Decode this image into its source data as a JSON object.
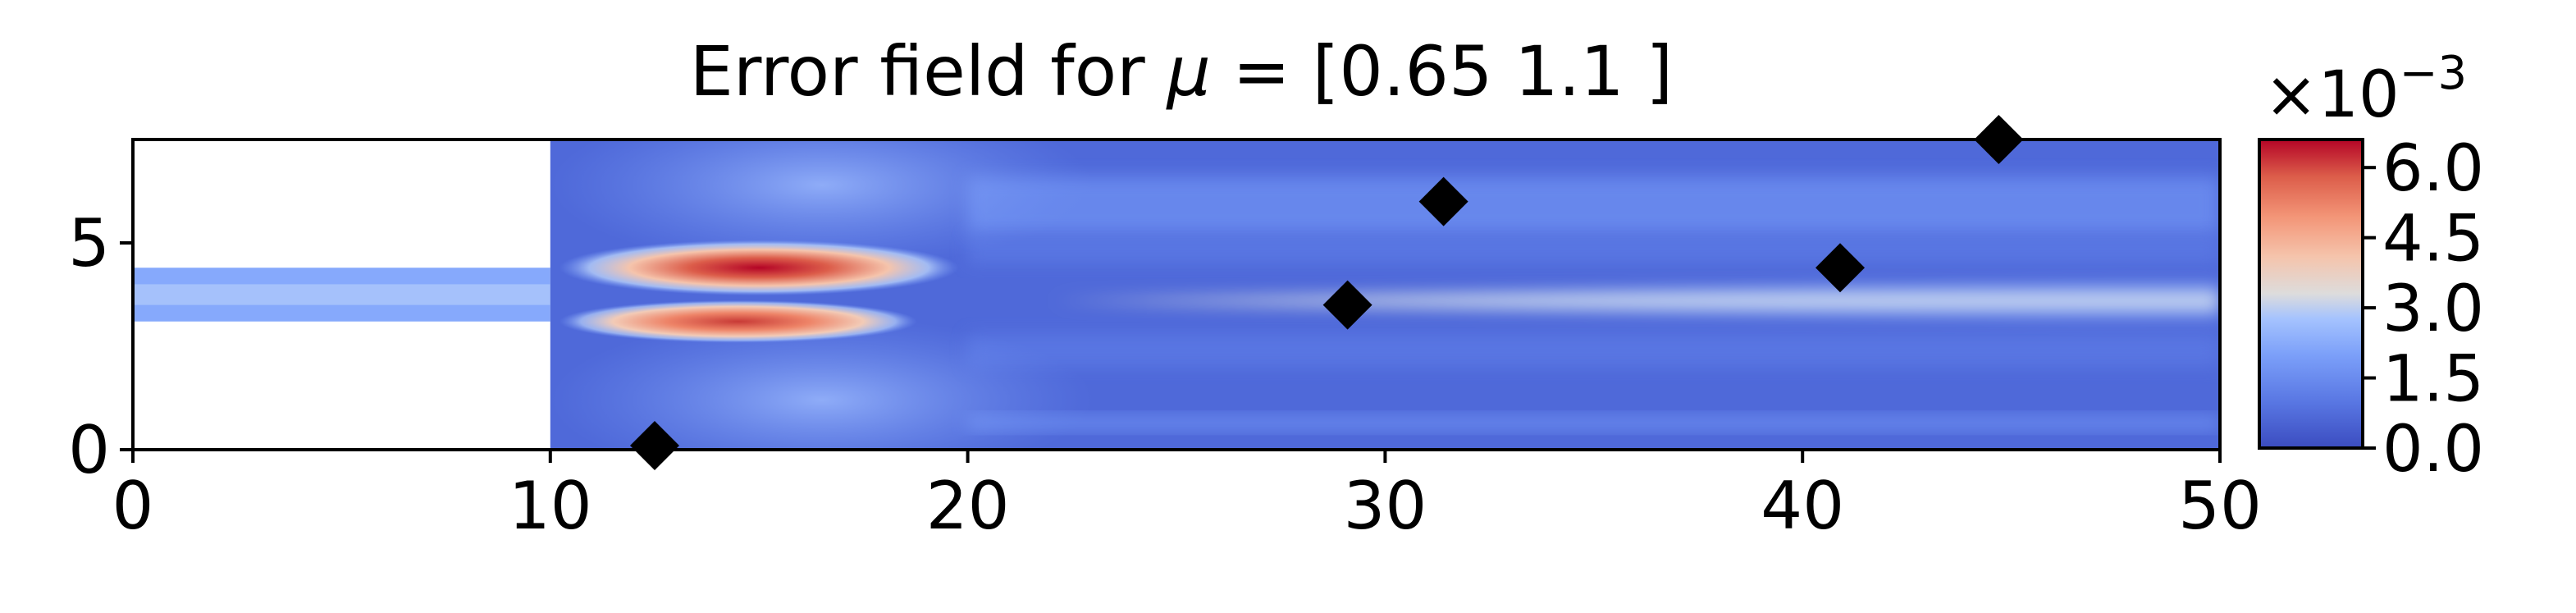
{
  "chart_data": {
    "type": "heatmap",
    "title_prefix": "Error field for ",
    "title_mu": "μ",
    "title_suffix": " = [0.65 1.1 ]",
    "xlabel": "",
    "ylabel": "",
    "xlim": [
      0,
      50
    ],
    "ylim": [
      0,
      7.5
    ],
    "x_ticks": [
      0,
      10,
      20,
      30,
      40,
      50
    ],
    "y_ticks": [
      0,
      5
    ],
    "grid": false,
    "domain": {
      "inlet_channel": {
        "x": [
          0,
          10
        ],
        "y": [
          3.1,
          4.4
        ]
      },
      "main_chamber": {
        "x": [
          10,
          50
        ],
        "y": [
          0,
          7.5
        ]
      }
    },
    "error_features": [
      {
        "name": "upper-jet-peak",
        "x_range": [
          11,
          19
        ],
        "y": 4.4,
        "value": 0.0066
      },
      {
        "name": "lower-jet-peak",
        "x_range": [
          11,
          18
        ],
        "y": 3.1,
        "value": 0.0052
      },
      {
        "name": "central-streak",
        "x_range": [
          22,
          50
        ],
        "y": 3.6,
        "value": 0.003
      }
    ],
    "sensor_points": [
      {
        "x": 12.5,
        "y": 0.1
      },
      {
        "x": 29.1,
        "y": 3.5
      },
      {
        "x": 31.4,
        "y": 6.0
      },
      {
        "x": 40.9,
        "y": 4.4
      },
      {
        "x": 44.7,
        "y": 7.5
      }
    ],
    "colorbar": {
      "colormap": "coolwarm",
      "min": 0.0,
      "max": 6.6,
      "ticks": [
        "0.0",
        "1.5",
        "3.0",
        "4.5",
        "6.0"
      ],
      "exponent_base": "×10",
      "exponent_power": "−3"
    },
    "colors": {
      "low": "#3b4cc0",
      "mid": "#dddddd",
      "high": "#b40426",
      "marker": "#000000"
    }
  }
}
